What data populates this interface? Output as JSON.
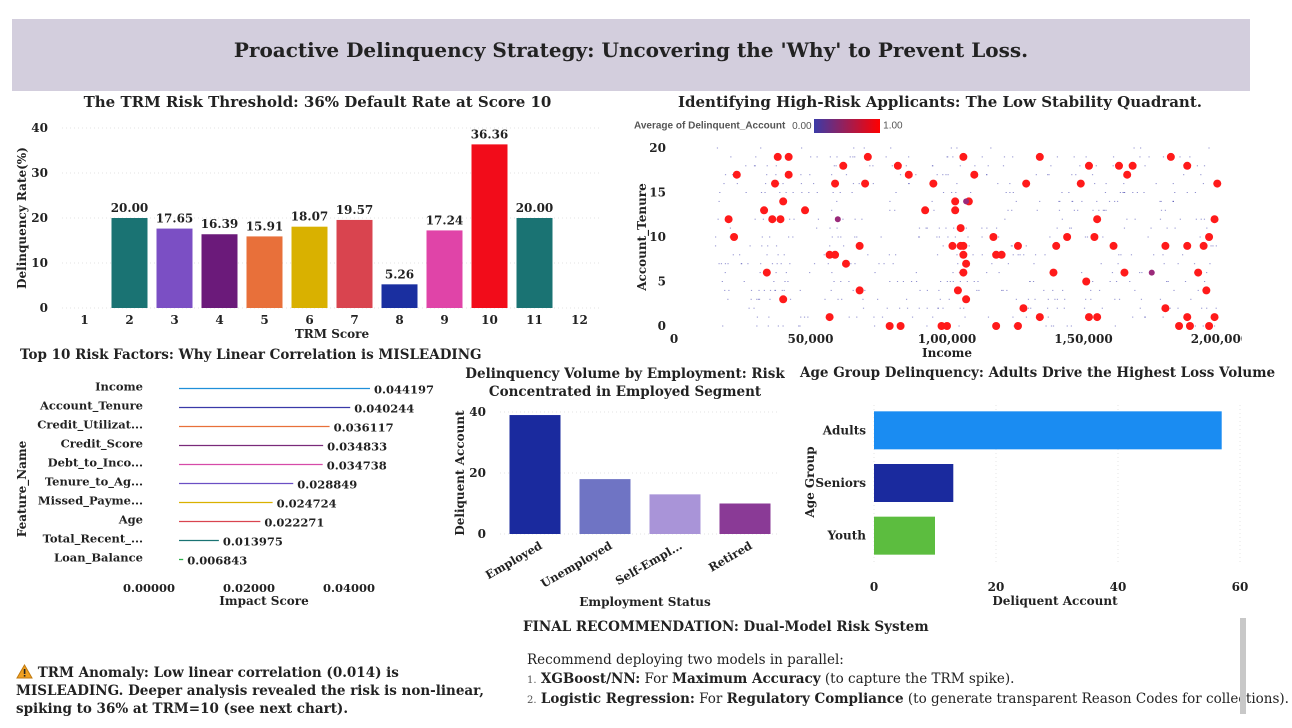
{
  "banner": {
    "title": "Proactive Delinquency Strategy: Uncovering the 'Why' to Prevent Loss."
  },
  "trm": {
    "title": "The TRM Risk Threshold: 36% Default Rate at Score 10",
    "xlabel": "TRM  Score",
    "ylabel": "Delinquency Rate(%)"
  },
  "scatter": {
    "title": "Identifying High-Risk Applicants: The Low Stability Quadrant.",
    "legend_label": "Average of Delinquent_Account",
    "legend_min": "0.00",
    "legend_max": "1.00",
    "xlabel": "Income",
    "ylabel": "Account_Tenure"
  },
  "factors": {
    "title": "Top 10 Risk Factors: Why Linear Correlation is MISLEADING",
    "xlabel": "Impact  Score",
    "ylabel": "Feature_Name"
  },
  "employment": {
    "title_line1": "Delinquency Volume by Employment: Risk",
    "title_line2": "Concentrated in Employed Segment",
    "xlabel": "Employment  Status",
    "ylabel": "Deliquent Account"
  },
  "age": {
    "title": "Age Group Delinquency: Adults Drive the Highest Loss Volume",
    "xlabel": "Deliquent Account",
    "ylabel": "Age Group"
  },
  "anomaly": {
    "icon": "warning-icon",
    "line1": "TRM Anomaly: Low linear correlation (0.014) is",
    "line2": "MISLEADING. Deeper analysis revealed the risk is non-linear,",
    "line3": "spiking to 36% at TRM=10 (see next chart)."
  },
  "recommendation": {
    "heading": "FINAL RECOMMENDATION: Dual-Model Risk System",
    "intro": "Recommend deploying two models in parallel:",
    "item1_num": "1.",
    "item1_bold1": "XGBoost/NN:",
    "item1_text1": " For ",
    "item1_bold2": "Maximum Accuracy",
    "item1_text2": " (to capture the TRM spike).",
    "item2_num": "2.",
    "item2_bold1": "Logistic Regression:",
    "item2_text1": " For ",
    "item2_bold2": "Regulatory Compliance",
    "item2_text2": " (to generate transparent Reason Codes for collections)."
  },
  "chart_data": [
    {
      "id": "trm",
      "type": "bar",
      "title": "The TRM Risk Threshold: 36% Default Rate at Score 10",
      "xlabel": "TRM  Score",
      "ylabel": "Delinquency Rate(%)",
      "categories": [
        "1",
        "2",
        "3",
        "4",
        "5",
        "6",
        "7",
        "8",
        "9",
        "10",
        "11",
        "12"
      ],
      "values": [
        null,
        20.0,
        17.65,
        16.39,
        15.91,
        18.07,
        19.57,
        5.26,
        17.24,
        36.36,
        20.0,
        null
      ],
      "labels": [
        "",
        "20.00",
        "17.65",
        "16.39",
        "15.91",
        "18.07",
        "19.57",
        "5.26",
        "17.24",
        "36.36",
        "20.00",
        ""
      ],
      "colors": [
        "#1a7373",
        "#1a7373",
        "#7b4fc4",
        "#6b1a7a",
        "#e8703a",
        "#d9b100",
        "#d9444f",
        "#1a2fa0",
        "#e044a8",
        "#f20c1a",
        "#1a7373",
        "#1a7373"
      ],
      "ylim": [
        0,
        40
      ],
      "yticks": [
        0,
        10,
        20,
        30,
        40
      ],
      "grid": true
    },
    {
      "id": "scatter",
      "type": "scatter",
      "title": "Identifying High-Risk Applicants: The Low Stability Quadrant.",
      "xlabel": "Income",
      "ylabel": "Account_Tenure",
      "xlim": [
        0,
        200000
      ],
      "ylim": [
        0,
        20
      ],
      "xticks": [
        0,
        50000,
        100000,
        150000,
        200000
      ],
      "xtick_labels": [
        "0",
        "50,000",
        "1,00,000",
        "1,50,000",
        "2,00,000"
      ],
      "yticks": [
        0,
        5,
        10,
        15,
        20
      ],
      "color_scale": [
        "#3b3ba8",
        "#ff0000"
      ],
      "high_risk_points": [
        [
          38000,
          19
        ],
        [
          42000,
          19
        ],
        [
          62000,
          18
        ],
        [
          71000,
          19
        ],
        [
          82000,
          18
        ],
        [
          106000,
          19
        ],
        [
          134000,
          19
        ],
        [
          152000,
          18
        ],
        [
          163000,
          18
        ],
        [
          168000,
          18
        ],
        [
          182000,
          19
        ],
        [
          188000,
          18
        ],
        [
          23000,
          17
        ],
        [
          42000,
          17
        ],
        [
          86000,
          17
        ],
        [
          110000,
          17
        ],
        [
          166000,
          17
        ],
        [
          37000,
          16
        ],
        [
          59000,
          16
        ],
        [
          70000,
          16
        ],
        [
          95000,
          16
        ],
        [
          129000,
          16
        ],
        [
          149000,
          16
        ],
        [
          199000,
          16
        ],
        [
          40000,
          14
        ],
        [
          103000,
          14
        ],
        [
          108000,
          14
        ],
        [
          33000,
          13
        ],
        [
          48000,
          13
        ],
        [
          92000,
          13
        ],
        [
          103000,
          13
        ],
        [
          155000,
          12
        ],
        [
          198000,
          12
        ],
        [
          36000,
          12
        ],
        [
          39000,
          12
        ],
        [
          20000,
          12
        ],
        [
          105000,
          11
        ],
        [
          22000,
          10
        ],
        [
          105000,
          9
        ],
        [
          117000,
          10
        ],
        [
          144000,
          10
        ],
        [
          154000,
          10
        ],
        [
          196000,
          10
        ],
        [
          68000,
          9
        ],
        [
          102000,
          9
        ],
        [
          106000,
          9
        ],
        [
          126000,
          9
        ],
        [
          140000,
          9
        ],
        [
          161000,
          9
        ],
        [
          180000,
          9
        ],
        [
          188000,
          9
        ],
        [
          57000,
          8
        ],
        [
          59000,
          8
        ],
        [
          118000,
          8
        ],
        [
          120000,
          8
        ],
        [
          106000,
          8
        ],
        [
          194000,
          9
        ],
        [
          63000,
          7
        ],
        [
          107000,
          7
        ],
        [
          34000,
          6
        ],
        [
          106000,
          6
        ],
        [
          139000,
          6
        ],
        [
          165000,
          6
        ],
        [
          192000,
          6
        ],
        [
          68000,
          4
        ],
        [
          104000,
          4
        ],
        [
          107000,
          3
        ],
        [
          40000,
          3
        ],
        [
          151000,
          5
        ],
        [
          195000,
          4
        ],
        [
          128000,
          2
        ],
        [
          180000,
          2
        ],
        [
          57000,
          1
        ],
        [
          134000,
          1
        ],
        [
          152000,
          1
        ],
        [
          155000,
          1
        ],
        [
          188000,
          1
        ],
        [
          198000,
          1
        ],
        [
          83000,
          0
        ],
        [
          79000,
          0
        ],
        [
          98000,
          0
        ],
        [
          100000,
          0
        ],
        [
          118000,
          0
        ],
        [
          126000,
          0
        ],
        [
          185000,
          0
        ],
        [
          189000,
          0
        ],
        [
          196000,
          0
        ]
      ],
      "mid_risk_points": [
        [
          60000,
          12
        ],
        [
          107000,
          14
        ],
        [
          175000,
          6
        ]
      ]
    },
    {
      "id": "factors",
      "type": "bar",
      "orientation": "horizontal",
      "title": "Top 10 Risk Factors: Why Linear Correlation is MISLEADING",
      "xlabel": "Impact  Score",
      "ylabel": "Feature_Name",
      "categories": [
        "Income",
        "Account_Tenure",
        "Credit_Utilizat...",
        "Credit_Score",
        "Debt_to_Inco...",
        "Tenure_to_Ag...",
        "Missed_Payme...",
        "Age",
        "Total_Recent_...",
        "Loan_Balance"
      ],
      "values": [
        0.044197,
        0.040244,
        0.036117,
        0.034833,
        0.034738,
        0.028849,
        0.024724,
        0.022271,
        0.013975,
        0.006843
      ],
      "labels": [
        "0.044197",
        "0.040244",
        "0.036117",
        "0.034833",
        "0.034738",
        "0.028849",
        "0.024724",
        "0.022271",
        "0.013975",
        "0.006843"
      ],
      "colors": [
        "#1f8fd9",
        "#3a3aa8",
        "#e8703a",
        "#7a2a7a",
        "#d64aa8",
        "#6b4fc4",
        "#d9b100",
        "#d9444f",
        "#1a7373",
        "#2bb04a"
      ],
      "xlim": [
        0,
        0.05
      ],
      "xticks": [
        0,
        0.02,
        0.04
      ],
      "xtick_labels": [
        "0.00000",
        "0.02000",
        "0.04000"
      ]
    },
    {
      "id": "employment",
      "type": "bar",
      "title": "Delinquency Volume by Employment: Risk Concentrated in Employed Segment",
      "xlabel": "Employment  Status",
      "ylabel": "Deliquent Account",
      "categories": [
        "Employed",
        "Unemployed",
        "Self-Empl...",
        "Retired"
      ],
      "values": [
        39,
        18,
        13,
        10
      ],
      "colors": [
        "#1a2a9e",
        "#6f74c4",
        "#a994d8",
        "#8a3a96"
      ],
      "ylim": [
        0,
        40
      ],
      "yticks": [
        0,
        20,
        40
      ]
    },
    {
      "id": "age",
      "type": "bar",
      "orientation": "horizontal",
      "title": "Age Group Delinquency: Adults Drive the Highest Loss Volume",
      "xlabel": "Deliquent Account",
      "ylabel": "Age Group",
      "categories": [
        "Adults",
        "Seniors",
        "Youth"
      ],
      "values": [
        57,
        13,
        10
      ],
      "colors": [
        "#1a8cf2",
        "#1a2a9e",
        "#5cbd3f"
      ],
      "xlim": [
        0,
        60
      ],
      "xticks": [
        0,
        20,
        40,
        60
      ]
    }
  ]
}
